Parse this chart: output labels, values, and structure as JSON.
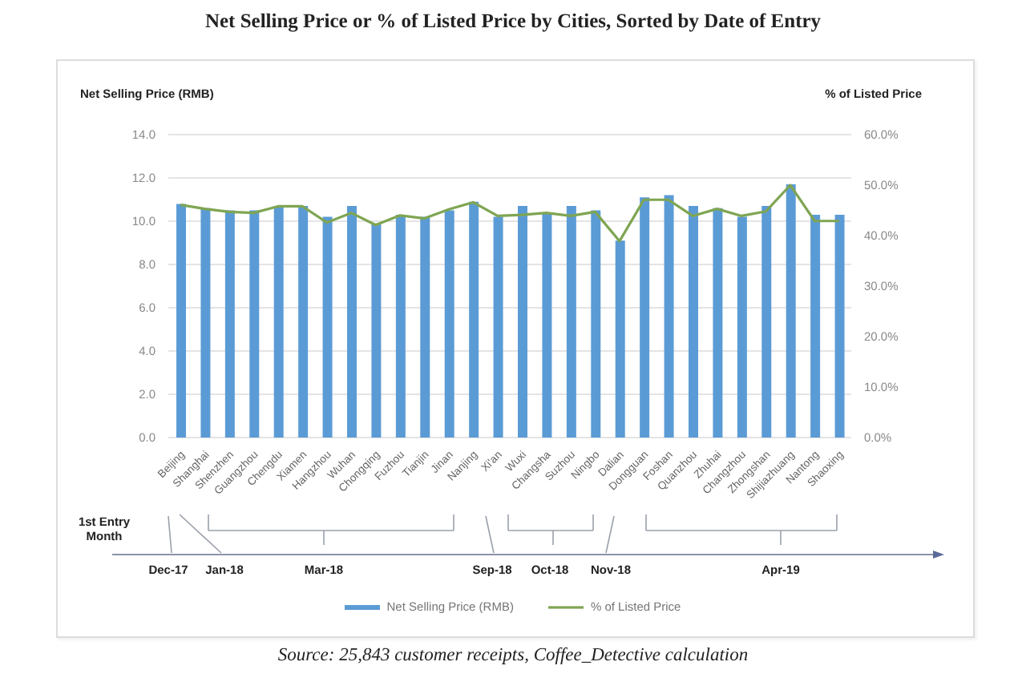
{
  "chart_data": {
    "type": "bar",
    "title": "Net Selling Price or % of Listed Price by Cities, Sorted by Date of Entry",
    "ylabel": "Net Selling Price (RMB)",
    "y2label": "% of Listed Price",
    "categories": [
      "Beijing",
      "Shanghai",
      "Shenzhen",
      "Guangzhou",
      "Chengdu",
      "Xiamen",
      "Hangzhou",
      "Wuhan",
      "Chongqing",
      "Fuzhou",
      "Tianjin",
      "Jinan",
      "Nanjing",
      "Xi'an",
      "Wuxi",
      "Changsha",
      "Suzhou",
      "Ningbo",
      "Dalian",
      "Dongguan",
      "Foshan",
      "Quanzhou",
      "Zhuhai",
      "Changzhou",
      "Zhongshan",
      "Shijiazhuang",
      "Nantong",
      "Shaoxing"
    ],
    "series": [
      {
        "name": "Net Selling Price (RMB)",
        "color": "#5b9bd5",
        "values": [
          10.8,
          10.6,
          10.5,
          10.5,
          10.7,
          10.7,
          10.2,
          10.7,
          9.9,
          10.3,
          10.2,
          10.5,
          10.9,
          10.2,
          10.7,
          10.4,
          10.7,
          10.5,
          9.1,
          11.1,
          11.2,
          10.7,
          10.6,
          10.2,
          10.7,
          11.7,
          10.3,
          10.3
        ]
      },
      {
        "name": "% of Listed Price",
        "type": "line",
        "axis": "y2",
        "color": "#7fa552",
        "values": [
          46.1,
          45.3,
          44.7,
          44.5,
          45.8,
          45.8,
          42.6,
          44.5,
          42.1,
          44.0,
          43.4,
          45.2,
          46.6,
          43.9,
          44.1,
          44.5,
          43.9,
          44.7,
          38.9,
          47.1,
          47.1,
          43.9,
          45.3,
          43.9,
          44.8,
          50.0,
          42.9,
          42.9
        ]
      }
    ],
    "ylim": [
      0,
      14
    ],
    "yticks": [
      {
        "value": 0,
        "label": "0.0"
      },
      {
        "value": 2,
        "label": "2.0"
      },
      {
        "value": 4,
        "label": "4.0"
      },
      {
        "value": 6,
        "label": "6.0"
      },
      {
        "value": 8,
        "label": "8.0"
      },
      {
        "value": 10,
        "label": "10.0"
      },
      {
        "value": 12,
        "label": "12.0"
      },
      {
        "value": 14,
        "label": "14.0"
      }
    ],
    "y2lim": [
      0,
      60
    ],
    "y2ticks": [
      {
        "value": 0,
        "label": "0.0%"
      },
      {
        "value": 10,
        "label": "10.0%"
      },
      {
        "value": 20,
        "label": "20.0%"
      },
      {
        "value": 30,
        "label": "30.0%"
      },
      {
        "value": 40,
        "label": "40.0%"
      },
      {
        "value": 50,
        "label": "50.0%"
      },
      {
        "value": 60,
        "label": "60.0%"
      }
    ],
    "grid": "y",
    "legend": "bottom",
    "annotations": [
      "1st Entry Month",
      "Dec-17",
      "Jan-18",
      "Mar-18",
      "Sep-18",
      "Oct-18",
      "Nov-18",
      "Apr-19",
      "Source: 25,843 customer receipts, Coffee_Detective calculation"
    ]
  }
}
